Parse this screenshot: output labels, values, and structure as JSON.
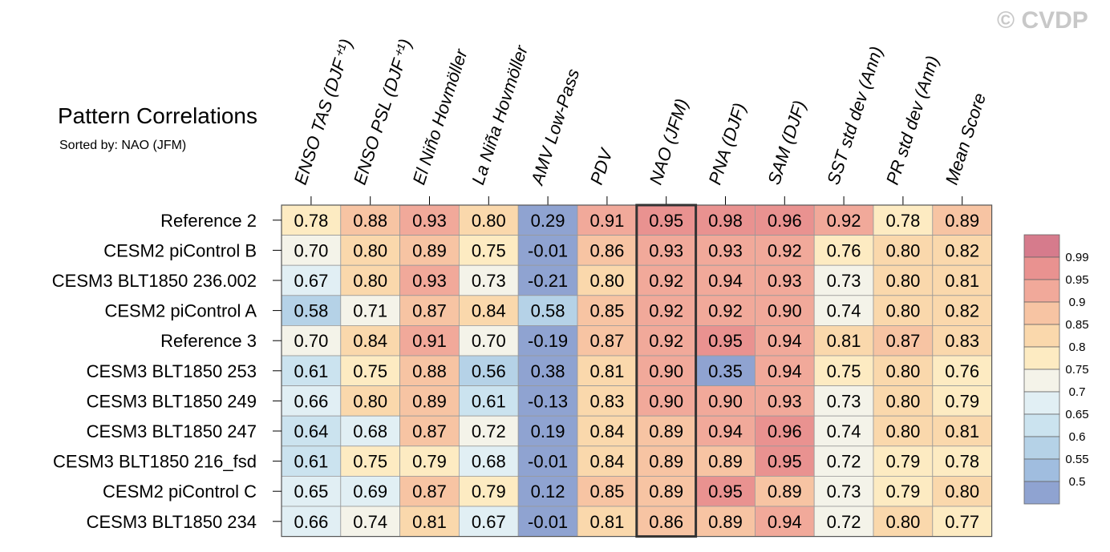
{
  "title": "Pattern Correlations",
  "subtitle": "Sorted by: NAO (JFM)",
  "watermark": "© CVDP",
  "chart_data": {
    "type": "heatmap",
    "highlight_column": "NAO (JFM)",
    "columns": [
      "ENSO TAS (DJF⁺¹)",
      "ENSO PSL (DJF⁺¹)",
      "El Niño Hovmöller",
      "La Niña Hovmöller",
      "AMV Low-Pass",
      "PDV",
      "NAO (JFM)",
      "PNA (DJF)",
      "SAM (DJF)",
      "SST std dev (Ann)",
      "PR std dev (Ann)",
      "Mean Score"
    ],
    "rows": [
      {
        "label": "Reference 2",
        "values": [
          0.78,
          0.88,
          0.93,
          0.8,
          0.29,
          0.91,
          0.95,
          0.98,
          0.96,
          0.92,
          0.78,
          0.89
        ]
      },
      {
        "label": "CESM2 piControl B",
        "values": [
          0.7,
          0.8,
          0.89,
          0.75,
          -0.01,
          0.86,
          0.93,
          0.93,
          0.92,
          0.76,
          0.8,
          0.82
        ]
      },
      {
        "label": "CESM3 BLT1850 236.002",
        "values": [
          0.67,
          0.8,
          0.93,
          0.73,
          -0.21,
          0.8,
          0.92,
          0.94,
          0.93,
          0.73,
          0.8,
          0.81
        ]
      },
      {
        "label": "CESM2 piControl A",
        "values": [
          0.58,
          0.71,
          0.87,
          0.84,
          0.58,
          0.85,
          0.92,
          0.92,
          0.9,
          0.74,
          0.8,
          0.82
        ]
      },
      {
        "label": "Reference 3",
        "values": [
          0.7,
          0.84,
          0.91,
          0.7,
          -0.19,
          0.87,
          0.92,
          0.95,
          0.94,
          0.81,
          0.87,
          0.83
        ]
      },
      {
        "label": "CESM3 BLT1850 253",
        "values": [
          0.61,
          0.75,
          0.88,
          0.56,
          0.38,
          0.81,
          0.9,
          0.35,
          0.94,
          0.75,
          0.8,
          0.76
        ]
      },
      {
        "label": "CESM3 BLT1850 249",
        "values": [
          0.66,
          0.8,
          0.89,
          0.61,
          -0.13,
          0.83,
          0.9,
          0.9,
          0.93,
          0.73,
          0.8,
          0.79
        ]
      },
      {
        "label": "CESM3 BLT1850 247",
        "values": [
          0.64,
          0.68,
          0.87,
          0.72,
          0.19,
          0.84,
          0.89,
          0.94,
          0.96,
          0.74,
          0.8,
          0.81
        ]
      },
      {
        "label": "CESM3 BLT1850 216_fsd",
        "values": [
          0.61,
          0.75,
          0.79,
          0.68,
          -0.01,
          0.84,
          0.89,
          0.89,
          0.95,
          0.72,
          0.79,
          0.78
        ]
      },
      {
        "label": "CESM2 piControl C",
        "values": [
          0.65,
          0.69,
          0.87,
          0.79,
          0.12,
          0.85,
          0.89,
          0.95,
          0.89,
          0.73,
          0.79,
          0.8
        ]
      },
      {
        "label": "CESM3 BLT1850 234",
        "values": [
          0.66,
          0.74,
          0.81,
          0.67,
          -0.01,
          0.81,
          0.86,
          0.89,
          0.94,
          0.72,
          0.8,
          0.77
        ]
      }
    ],
    "colorbar": {
      "labels": [
        "0.99",
        "0.95",
        "0.9",
        "0.85",
        "0.8",
        "0.75",
        "0.7",
        "0.65",
        "0.6",
        "0.55",
        "0.5"
      ],
      "colors": [
        "#d67b8c",
        "#e99290",
        "#f1a99a",
        "#f7c4a3",
        "#fad8ac",
        "#fdebc2",
        "#f4f3e9",
        "#e1eff4",
        "#cbe3ef",
        "#b5d2e7",
        "#a0bddf",
        "#8fa3d1"
      ]
    }
  }
}
